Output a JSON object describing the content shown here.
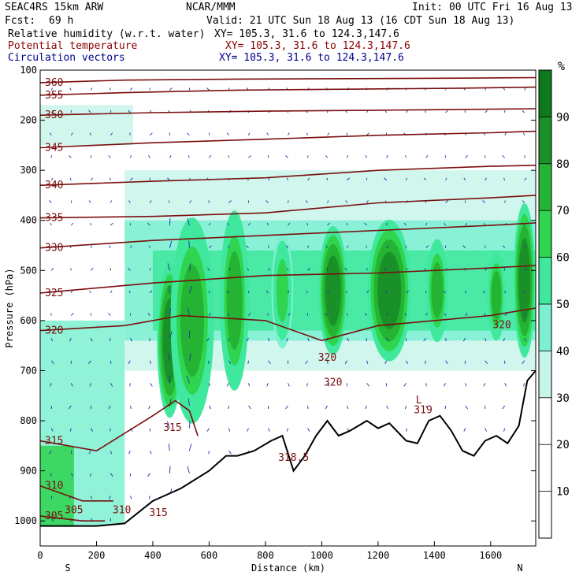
{
  "header": {
    "model": "SEAC4RS 15km ARW",
    "org": "NCAR/MMM",
    "init": "Init: 00 UTC Fri 16 Aug 13",
    "fcst_label": "Fcst:",
    "fcst_value": "69 h",
    "valid": "Valid: 21 UTC Sun 18 Aug 13 (16 CDT Sun 18 Aug 13)",
    "fields": [
      {
        "name": "Relative humidity (w.r.t. water)",
        "xy": "XY= 105.3, 31.6 to 124.3,147.6",
        "color": "#000000"
      },
      {
        "name": "Potential temperature",
        "xy": "XY= 105.3, 31.6 to 124.3,147.6",
        "color": "#8b0000"
      },
      {
        "name": "Circulation vectors",
        "xy": "XY= 105.3, 31.6 to 124.3,147.6",
        "color": "#00008b"
      }
    ]
  },
  "colorbar": {
    "unit": "%",
    "ticks": [
      "10",
      "20",
      "30",
      "40",
      "50",
      "60",
      "70",
      "80",
      "90"
    ],
    "bands": [
      {
        "from": 30,
        "to": 40,
        "color": "#c8f5ea"
      },
      {
        "from": 40,
        "to": 50,
        "color": "#7df0d0"
      },
      {
        "from": 50,
        "to": 60,
        "color": "#3fe89c"
      },
      {
        "from": 60,
        "to": 70,
        "color": "#2fd44f"
      },
      {
        "from": 70,
        "to": 80,
        "color": "#24b332"
      },
      {
        "from": 80,
        "to": 90,
        "color": "#1a9128"
      },
      {
        "from": 90,
        "to": 100,
        "color": "#0d7a1c"
      }
    ]
  },
  "chart_data": {
    "type": "area",
    "ylabel": "Pressure (hPa)",
    "xlabel": "Distance (km)",
    "xlim": [
      0,
      1760
    ],
    "ylim": [
      1050,
      100
    ],
    "x_ticks": [
      "0",
      "200",
      "400",
      "600",
      "800",
      "1000",
      "1200",
      "1400",
      "1600"
    ],
    "y_ticks": [
      "100",
      "200",
      "300",
      "400",
      "500",
      "600",
      "700",
      "800",
      "900",
      "1000"
    ],
    "x_end_labels": {
      "left": "S",
      "right": "N"
    },
    "theta_contours": [
      {
        "label": "360",
        "pts": [
          [
            0,
            125
          ],
          [
            300,
            120
          ],
          [
            700,
            118
          ],
          [
            1100,
            117
          ],
          [
            1500,
            116
          ],
          [
            1760,
            115
          ]
        ]
      },
      {
        "label": "355",
        "pts": [
          [
            0,
            150
          ],
          [
            300,
            145
          ],
          [
            700,
            140
          ],
          [
            1100,
            138
          ],
          [
            1500,
            136
          ],
          [
            1760,
            134
          ]
        ]
      },
      {
        "label": "350",
        "pts": [
          [
            0,
            190
          ],
          [
            400,
            185
          ],
          [
            800,
            182
          ],
          [
            1200,
            180
          ],
          [
            1600,
            178
          ],
          [
            1760,
            177
          ]
        ]
      },
      {
        "label": "345",
        "pts": [
          [
            0,
            255
          ],
          [
            400,
            245
          ],
          [
            800,
            238
          ],
          [
            1200,
            230
          ],
          [
            1600,
            225
          ],
          [
            1760,
            222
          ]
        ]
      },
      {
        "label": "340",
        "pts": [
          [
            0,
            330
          ],
          [
            400,
            322
          ],
          [
            800,
            315
          ],
          [
            1200,
            300
          ],
          [
            1600,
            292
          ],
          [
            1760,
            290
          ]
        ]
      },
      {
        "label": "335",
        "pts": [
          [
            0,
            395
          ],
          [
            400,
            392
          ],
          [
            800,
            385
          ],
          [
            1200,
            365
          ],
          [
            1600,
            355
          ],
          [
            1760,
            350
          ]
        ]
      },
      {
        "label": "330",
        "pts": [
          [
            0,
            455
          ],
          [
            400,
            440
          ],
          [
            800,
            430
          ],
          [
            1200,
            420
          ],
          [
            1600,
            410
          ],
          [
            1760,
            405
          ]
        ]
      },
      {
        "label": "325",
        "pts": [
          [
            0,
            545
          ],
          [
            400,
            525
          ],
          [
            800,
            510
          ],
          [
            1200,
            505
          ],
          [
            1600,
            495
          ],
          [
            1760,
            490
          ]
        ]
      },
      {
        "label": "320",
        "pts": [
          [
            0,
            620
          ],
          [
            300,
            610
          ],
          [
            500,
            590
          ],
          [
            800,
            600
          ],
          [
            1000,
            640
          ],
          [
            1200,
            610
          ],
          [
            1400,
            600
          ],
          [
            1600,
            590
          ],
          [
            1760,
            575
          ]
        ]
      },
      {
        "label": "315",
        "pts": [
          [
            0,
            840
          ],
          [
            200,
            860
          ],
          [
            400,
            790
          ],
          [
            480,
            760
          ],
          [
            530,
            780
          ],
          [
            560,
            830
          ]
        ]
      },
      {
        "label": "310",
        "pts": [
          [
            0,
            930
          ],
          [
            150,
            960
          ],
          [
            260,
            960
          ]
        ]
      },
      {
        "label": "305",
        "pts": [
          [
            0,
            990
          ],
          [
            150,
            1000
          ],
          [
            230,
            1000
          ]
        ]
      }
    ],
    "extra_labels": [
      {
        "text": "320",
        "x": 1020,
        "p": 680
      },
      {
        "text": "320",
        "x": 1040,
        "p": 730
      },
      {
        "text": "320",
        "x": 1640,
        "p": 615
      },
      {
        "text": "319",
        "x": 1360,
        "p": 785
      },
      {
        "text": "318.5",
        "x": 900,
        "p": 880
      },
      {
        "text": "315",
        "x": 470,
        "p": 820
      },
      {
        "text": "315",
        "x": 420,
        "p": 990
      },
      {
        "text": "310",
        "x": 290,
        "p": 985
      },
      {
        "text": "305",
        "x": 120,
        "p": 985
      },
      {
        "text": "L",
        "x": 1345,
        "p": 765
      }
    ],
    "terrain": [
      [
        0,
        1010
      ],
      [
        200,
        1010
      ],
      [
        300,
        1005
      ],
      [
        400,
        960
      ],
      [
        500,
        935
      ],
      [
        600,
        900
      ],
      [
        660,
        870
      ],
      [
        700,
        870
      ],
      [
        760,
        860
      ],
      [
        820,
        840
      ],
      [
        860,
        830
      ],
      [
        900,
        900
      ],
      [
        940,
        870
      ],
      [
        980,
        830
      ],
      [
        1020,
        800
      ],
      [
        1060,
        830
      ],
      [
        1100,
        820
      ],
      [
        1160,
        800
      ],
      [
        1200,
        815
      ],
      [
        1240,
        805
      ],
      [
        1300,
        840
      ],
      [
        1340,
        845
      ],
      [
        1380,
        800
      ],
      [
        1420,
        790
      ],
      [
        1460,
        820
      ],
      [
        1500,
        860
      ],
      [
        1540,
        870
      ],
      [
        1580,
        840
      ],
      [
        1620,
        830
      ],
      [
        1660,
        845
      ],
      [
        1700,
        810
      ],
      [
        1730,
        720
      ],
      [
        1760,
        700
      ]
    ],
    "rh_blobs": [
      {
        "x": 460,
        "p": 640,
        "rx": 35,
        "rp": 120,
        "rh": 80
      },
      {
        "x": 540,
        "p": 600,
        "rx": 60,
        "rp": 160,
        "rh": 75
      },
      {
        "x": 690,
        "p": 560,
        "rx": 40,
        "rp": 140,
        "rh": 70
      },
      {
        "x": 860,
        "p": 540,
        "rx": 30,
        "rp": 90,
        "rh": 65
      },
      {
        "x": 1040,
        "p": 540,
        "rx": 40,
        "rp": 100,
        "rh": 80
      },
      {
        "x": 1240,
        "p": 540,
        "rx": 60,
        "rp": 110,
        "rh": 85
      },
      {
        "x": 1410,
        "p": 540,
        "rx": 30,
        "rp": 80,
        "rh": 70
      },
      {
        "x": 1620,
        "p": 550,
        "rx": 25,
        "rp": 70,
        "rh": 75
      },
      {
        "x": 1720,
        "p": 520,
        "rx": 30,
        "rp": 120,
        "rh": 82
      }
    ]
  }
}
